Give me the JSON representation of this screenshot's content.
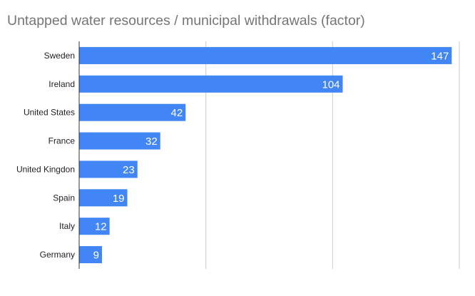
{
  "chart_data": {
    "type": "bar",
    "orientation": "horizontal",
    "title": "Untapped water resources / municipal withdrawals (factor)",
    "categories": [
      "Sweden",
      "Ireland",
      "United States",
      "France",
      "United Kingdon",
      "Spain",
      "Italy",
      "Germany"
    ],
    "values": [
      147,
      104,
      42,
      32,
      23,
      19,
      12,
      9
    ],
    "xlim": [
      0,
      150
    ],
    "grid": true,
    "legend": "none",
    "bar_color": "#4285f4"
  }
}
